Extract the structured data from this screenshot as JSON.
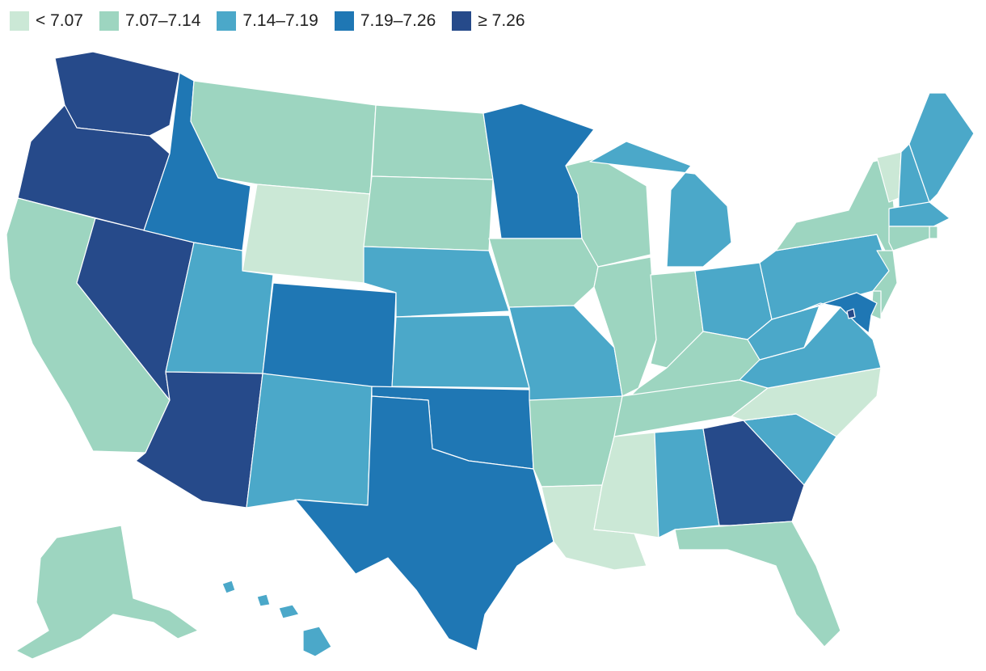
{
  "legend": {
    "items": [
      {
        "label": "< 7.07",
        "color": "#cbe8d6"
      },
      {
        "label": "7.07–7.14",
        "color": "#9dd5c0"
      },
      {
        "label": "7.14–7.19",
        "color": "#4ba8c9"
      },
      {
        "label": "7.19–7.26",
        "color": "#1f77b4"
      },
      {
        "label": "≥ 7.26",
        "color": "#264a8a"
      }
    ]
  },
  "map": {
    "type": "choropleth",
    "region": "United States",
    "states": [
      {
        "id": "WA",
        "bin": 4
      },
      {
        "id": "OR",
        "bin": 4
      },
      {
        "id": "CA",
        "bin": 1
      },
      {
        "id": "NV",
        "bin": 4
      },
      {
        "id": "ID",
        "bin": 3
      },
      {
        "id": "MT",
        "bin": 1
      },
      {
        "id": "WY",
        "bin": 0
      },
      {
        "id": "UT",
        "bin": 2
      },
      {
        "id": "AZ",
        "bin": 4
      },
      {
        "id": "CO",
        "bin": 3
      },
      {
        "id": "NM",
        "bin": 2
      },
      {
        "id": "ND",
        "bin": 1
      },
      {
        "id": "SD",
        "bin": 1
      },
      {
        "id": "NE",
        "bin": 2
      },
      {
        "id": "KS",
        "bin": 2
      },
      {
        "id": "OK",
        "bin": 3
      },
      {
        "id": "TX",
        "bin": 3
      },
      {
        "id": "MN",
        "bin": 3
      },
      {
        "id": "IA",
        "bin": 1
      },
      {
        "id": "MO",
        "bin": 2
      },
      {
        "id": "AR",
        "bin": 1
      },
      {
        "id": "LA",
        "bin": 0
      },
      {
        "id": "WI",
        "bin": 1
      },
      {
        "id": "IL",
        "bin": 1
      },
      {
        "id": "MI",
        "bin": 2
      },
      {
        "id": "IN",
        "bin": 1
      },
      {
        "id": "OH",
        "bin": 2
      },
      {
        "id": "KY",
        "bin": 1
      },
      {
        "id": "TN",
        "bin": 1
      },
      {
        "id": "MS",
        "bin": 0
      },
      {
        "id": "AL",
        "bin": 2
      },
      {
        "id": "GA",
        "bin": 4
      },
      {
        "id": "FL",
        "bin": 1
      },
      {
        "id": "SC",
        "bin": 2
      },
      {
        "id": "NC",
        "bin": 0
      },
      {
        "id": "VA",
        "bin": 2
      },
      {
        "id": "WV",
        "bin": 2
      },
      {
        "id": "PA",
        "bin": 2
      },
      {
        "id": "NY",
        "bin": 1
      },
      {
        "id": "VT",
        "bin": 0
      },
      {
        "id": "NH",
        "bin": 2
      },
      {
        "id": "ME",
        "bin": 2
      },
      {
        "id": "MA",
        "bin": 2
      },
      {
        "id": "RI",
        "bin": 1
      },
      {
        "id": "CT",
        "bin": 1
      },
      {
        "id": "NJ",
        "bin": 1
      },
      {
        "id": "DE",
        "bin": 1
      },
      {
        "id": "MD",
        "bin": 3
      },
      {
        "id": "DC",
        "bin": 4
      },
      {
        "id": "AK",
        "bin": 1
      },
      {
        "id": "HI",
        "bin": 2
      }
    ]
  }
}
